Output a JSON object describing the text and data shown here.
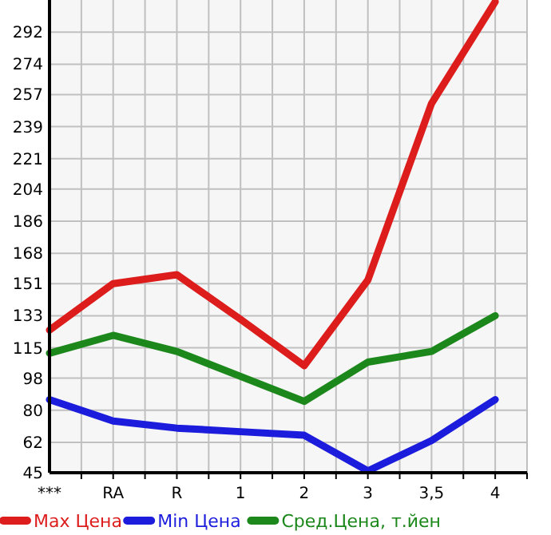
{
  "chart_data": {
    "type": "line",
    "categories": [
      "***",
      "RA",
      "R",
      "1",
      "2",
      "3",
      "3,5",
      "4"
    ],
    "series": [
      {
        "name": "Max Цена",
        "color": "#dd1c1c",
        "values": [
          125,
          151,
          156,
          131,
          105,
          153,
          252,
          309
        ]
      },
      {
        "name": "Min Цена",
        "color": "#1c1cdd",
        "values": [
          86,
          74,
          70,
          68,
          66,
          46,
          63,
          86
        ]
      },
      {
        "name": "Сред.Цена, т.йен",
        "color": "#1c881c",
        "values": [
          112,
          122,
          113,
          99,
          85,
          107,
          113,
          133
        ]
      }
    ],
    "ylim": [
      45,
      310
    ],
    "yticks": [
      45,
      62,
      80,
      98,
      115,
      133,
      151,
      168,
      186,
      204,
      221,
      239,
      257,
      274,
      292
    ],
    "grid": true,
    "legend": "bottom",
    "marker": "none",
    "line_style": "solid"
  }
}
